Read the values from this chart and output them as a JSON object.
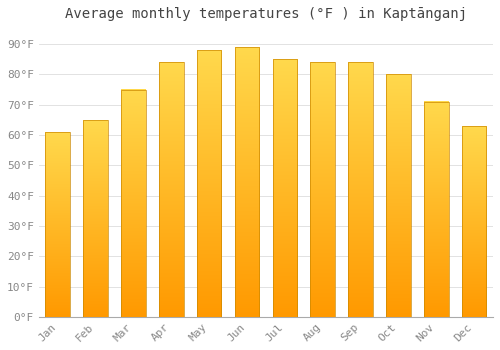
{
  "title": "Average monthly temperatures (°F ) in Kaptānganj",
  "months": [
    "Jan",
    "Feb",
    "Mar",
    "Apr",
    "May",
    "Jun",
    "Jul",
    "Aug",
    "Sep",
    "Oct",
    "Nov",
    "Dec"
  ],
  "values": [
    61,
    65,
    75,
    84,
    88,
    89,
    85,
    84,
    84,
    80,
    71,
    63
  ],
  "bar_color_top": "#FFD966",
  "bar_color_bottom": "#FFA500",
  "bar_edge_color": "#CC8800",
  "background_color": "#ffffff",
  "plot_bg_color": "#ffffff",
  "ylim": [
    0,
    95
  ],
  "yticks": [
    0,
    10,
    20,
    30,
    40,
    50,
    60,
    70,
    80,
    90
  ],
  "ytick_labels": [
    "0°F",
    "10°F",
    "20°F",
    "30°F",
    "40°F",
    "50°F",
    "60°F",
    "70°F",
    "80°F",
    "90°F"
  ],
  "grid_color": "#dddddd",
  "title_fontsize": 10,
  "tick_fontsize": 8,
  "tick_color": "#888888",
  "bar_width": 0.65
}
